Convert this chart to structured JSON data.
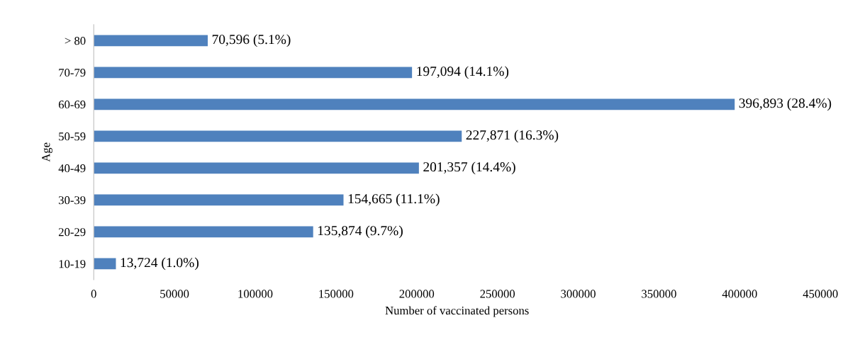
{
  "chart_data": {
    "type": "bar",
    "orientation": "horizontal",
    "xlabel": "Number of vaccinated persons",
    "ylabel": "Age",
    "categories": [
      "> 80",
      "70-79",
      "60-69",
      "50-59",
      "40-49",
      "30-39",
      "20-29",
      "10-19"
    ],
    "values": [
      70596,
      197094,
      396893,
      227871,
      201357,
      154665,
      135874,
      13724
    ],
    "value_labels": [
      "70,596 (5.1%)",
      "197,094 (14.1%)",
      "396,893 (28.4%)",
      "227,871 (16.3%)",
      "201,357 (14.4%)",
      "154,665 (11.1%)",
      "135,874 (9.7%)",
      "13,724 (1.0%)"
    ],
    "color": "#4f81bd",
    "xlim": [
      0,
      450000
    ],
    "xticks": [
      0,
      50000,
      100000,
      150000,
      200000,
      250000,
      300000,
      350000,
      400000,
      450000
    ],
    "grid": false
  }
}
